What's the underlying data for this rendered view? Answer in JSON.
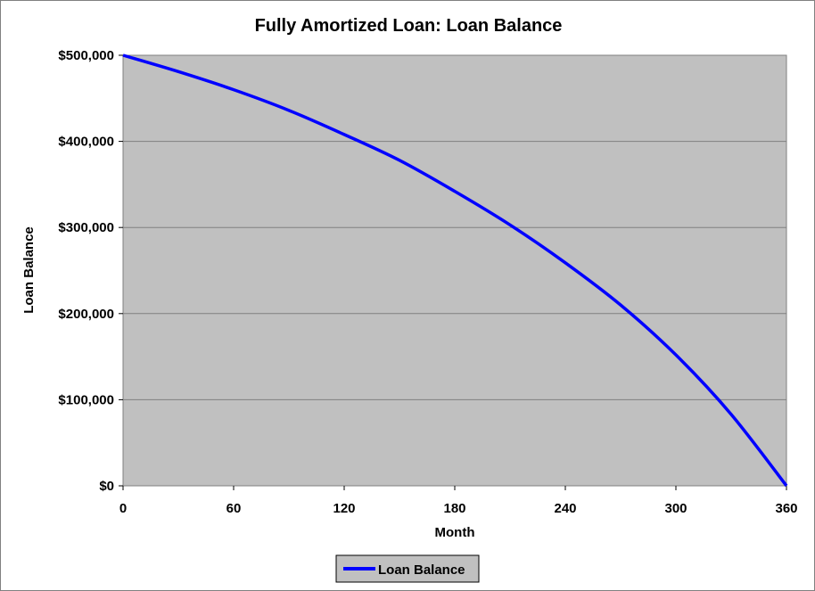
{
  "chart_data": {
    "type": "line",
    "title": "Fully Amortized Loan: Loan Balance",
    "xlabel": "Month",
    "ylabel": "Loan Balance",
    "xlim": [
      0,
      360
    ],
    "ylim": [
      0,
      500000
    ],
    "x_ticks": [
      0,
      60,
      120,
      180,
      240,
      300,
      360
    ],
    "y_ticks": [
      0,
      100000,
      200000,
      300000,
      400000,
      500000
    ],
    "x_tick_labels": [
      "0",
      "60",
      "120",
      "180",
      "240",
      "300",
      "360"
    ],
    "y_tick_labels": [
      "$0",
      "$100,000",
      "$200,000",
      "$300,000",
      "$400,000",
      "$500,000"
    ],
    "grid": "horizontal",
    "plot_background": "#C0C0C0",
    "legend_position": "bottom",
    "series": [
      {
        "name": "Loan Balance",
        "color": "#0000FF",
        "x": [
          0,
          30,
          60,
          90,
          120,
          150,
          180,
          210,
          240,
          270,
          300,
          330,
          360
        ],
        "values": [
          500000,
          481000,
          460000,
          436000,
          408000,
          378000,
          342000,
          303000,
          259000,
          210000,
          152000,
          83000,
          0
        ]
      }
    ]
  }
}
